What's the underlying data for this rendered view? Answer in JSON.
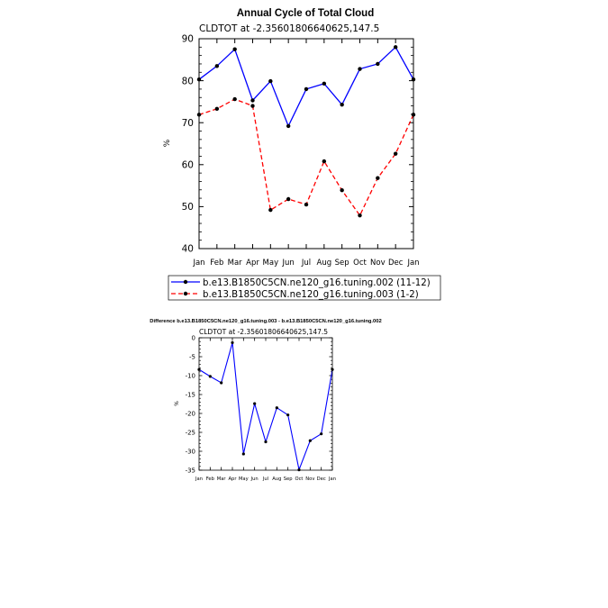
{
  "chart_data": [
    {
      "type": "line",
      "title": "Annual Cycle of Total Cloud",
      "subtitle": "CLDTOT at -2.35601806640625,147.5",
      "xlabel": "",
      "ylabel": "%",
      "categories": [
        "Jan",
        "Feb",
        "Mar",
        "Apr",
        "May",
        "Jun",
        "Jul",
        "Aug",
        "Sep",
        "Oct",
        "Nov",
        "Dec",
        "Jan"
      ],
      "ylim": [
        40,
        90
      ],
      "yticks": [
        40,
        50,
        60,
        70,
        80,
        90
      ],
      "grid": false,
      "legend_placement": "bottom",
      "series": [
        {
          "name": "b.e13.B1850C5CN.ne120_g16.tuning.002 (11-12)",
          "color": "#0000ff",
          "dash": "solid",
          "values": [
            80.3,
            83.5,
            87.5,
            75.3,
            79.9,
            69.2,
            78.0,
            79.3,
            74.3,
            82.8,
            84.0,
            88.0,
            80.3
          ]
        },
        {
          "name": "b.e13.B1850C5CN.ne120_g16.tuning.003 (1-2)",
          "color": "#ff0000",
          "dash": "dashed",
          "values": [
            71.9,
            73.3,
            75.6,
            74.0,
            49.2,
            51.8,
            50.5,
            60.8,
            53.9,
            47.9,
            56.8,
            62.6,
            71.9
          ]
        }
      ]
    },
    {
      "type": "line",
      "title": "Difference b.e13.B1850C5CN.ne120_g16.tuning.003 - b.e13.B1850C5CN.ne120_g16.tuning.002",
      "subtitle": "CLDTOT at -2.35601806640625,147.5",
      "xlabel": "",
      "ylabel": "%",
      "categories": [
        "Jan",
        "Feb",
        "Mar",
        "Apr",
        "May",
        "Jun",
        "Jul",
        "Aug",
        "Sep",
        "Oct",
        "Nov",
        "Dec",
        "Jan"
      ],
      "ylim": [
        -35,
        0
      ],
      "yticks": [
        -35,
        -30,
        -25,
        -20,
        -15,
        -10,
        -5,
        0
      ],
      "grid": false,
      "series": [
        {
          "color": "#0000ff",
          "dash": "solid",
          "values": [
            -8.4,
            -10.2,
            -11.9,
            -1.3,
            -30.7,
            -17.4,
            -27.5,
            -18.5,
            -20.4,
            -34.9,
            -27.2,
            -25.4,
            -8.4
          ]
        }
      ]
    }
  ]
}
